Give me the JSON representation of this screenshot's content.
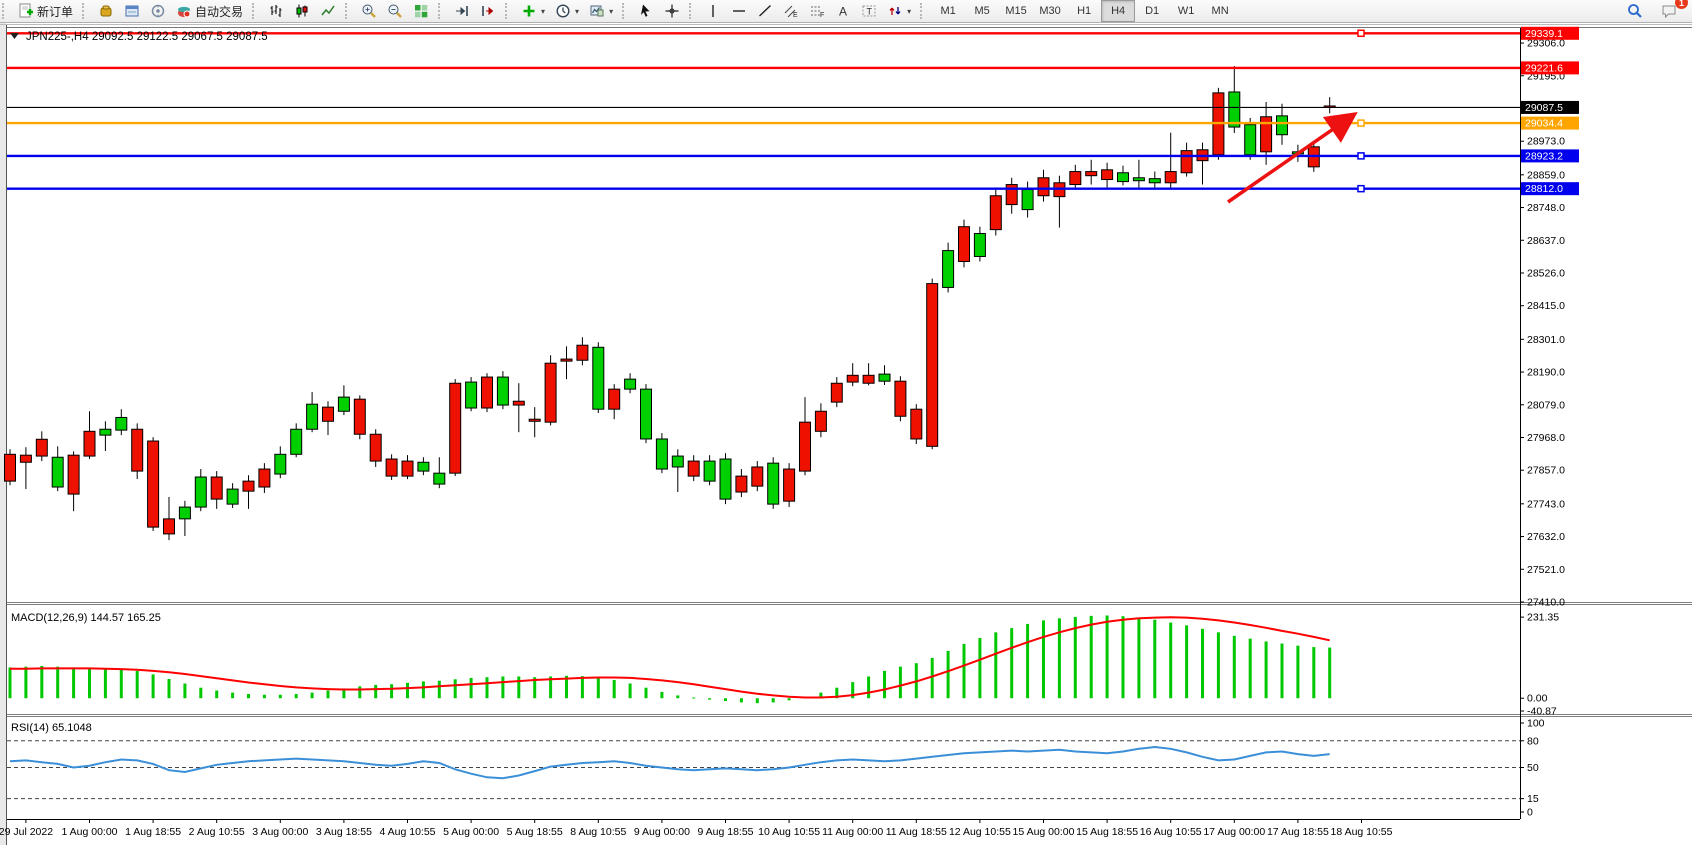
{
  "toolbar": {
    "groups": [
      {
        "items": [
          {
            "name": "new-order",
            "icon": "new-order",
            "label": "新订单"
          }
        ]
      },
      {
        "items": [
          {
            "name": "market-watch",
            "icon": "market-watch"
          },
          {
            "name": "data-window",
            "icon": "data-window"
          },
          {
            "name": "navigator",
            "icon": "navigator"
          },
          {
            "name": "auto-trading",
            "icon": "auto-trading",
            "label": "自动交易"
          }
        ]
      },
      {
        "items": [
          {
            "name": "bar-chart-mode",
            "icon": "bars"
          },
          {
            "name": "candlestick-mode",
            "icon": "candles"
          },
          {
            "name": "line-chart-mode",
            "icon": "line-chart"
          }
        ]
      },
      {
        "items": [
          {
            "name": "zoom-in",
            "icon": "zoom-in"
          },
          {
            "name": "zoom-out",
            "icon": "zoom-out"
          },
          {
            "name": "tile-windows",
            "icon": "tile"
          }
        ]
      },
      {
        "items": [
          {
            "name": "auto-scroll",
            "icon": "auto-scroll"
          },
          {
            "name": "chart-shift",
            "icon": "chart-shift"
          }
        ]
      },
      {
        "items": [
          {
            "name": "indicators",
            "icon": "indicators",
            "caret": true
          },
          {
            "name": "periods",
            "icon": "clock",
            "caret": true
          },
          {
            "name": "templates",
            "icon": "template",
            "caret": true
          }
        ]
      },
      {
        "items": [
          {
            "name": "cursor",
            "icon": "cursor"
          },
          {
            "name": "crosshair",
            "icon": "crosshair"
          }
        ]
      },
      {
        "items": [
          {
            "name": "vertical-line",
            "icon": "vline"
          },
          {
            "name": "horizontal-line",
            "icon": "hline"
          },
          {
            "name": "trendline",
            "icon": "trendline"
          },
          {
            "name": "equidistant-channel",
            "icon": "channel"
          },
          {
            "name": "fibonacci",
            "icon": "fibo"
          },
          {
            "name": "text",
            "icon": "text"
          },
          {
            "name": "text-label",
            "icon": "label"
          },
          {
            "name": "shapes",
            "icon": "shapes",
            "caret": true
          }
        ]
      }
    ],
    "timeframes": {
      "options": [
        "M1",
        "M5",
        "M15",
        "M30",
        "H1",
        "H4",
        "D1",
        "W1",
        "MN"
      ],
      "active": "H4"
    },
    "right_items": [
      {
        "name": "search",
        "icon": "search"
      },
      {
        "name": "chat",
        "icon": "chat",
        "badge": "1"
      }
    ]
  },
  "chart_data": [
    {
      "type": "candlestick",
      "symbol": "JPN225-,H4",
      "title_text": "JPN225-,H4   29092.5 29122.5 29067.5 29087.5",
      "ohlc": {
        "open": 29092.5,
        "high": 29122.5,
        "low": 29067.5,
        "close": 29087.5
      },
      "up_color": "#00d000",
      "down_color": "#ee1100",
      "y_axis": {
        "range": [
          27410,
          29357
        ],
        "ticks": [
          29306,
          29195,
          28973,
          28859,
          28748,
          28637,
          28526,
          28415,
          28301,
          28190,
          28079,
          27968,
          27857,
          27743,
          27632,
          27521,
          27410
        ]
      },
      "x_axis": {
        "labels": [
          "29 Jul 2022",
          "1 Aug 00:00",
          "1 Aug 18:55",
          "2 Aug 10:55",
          "3 Aug 00:00",
          "3 Aug 18:55",
          "4 Aug 10:55",
          "5 Aug 00:00",
          "5 Aug 18:55",
          "8 Aug 10:55",
          "9 Aug 00:00",
          "9 Aug 18:55",
          "10 Aug 10:55",
          "11 Aug 00:00",
          "11 Aug 18:55",
          "12 Aug 10:55",
          "15 Aug 00:00",
          "15 Aug 18:55",
          "16 Aug 10:55",
          "17 Aug 00:00",
          "17 Aug 18:55",
          "18 Aug 10:55"
        ],
        "label_every_n_candles": 4
      },
      "levels": [
        {
          "price": 29339.1,
          "color": "#ff0000",
          "handle": true,
          "current": false
        },
        {
          "price": 29221.6,
          "color": "#ff0000",
          "handle": false,
          "current": false
        },
        {
          "price": 29087.5,
          "color": "#000000",
          "handle": false,
          "current": true
        },
        {
          "price": 29034.4,
          "color": "#ffa500",
          "handle": true,
          "current": false
        },
        {
          "price": 28923.2,
          "color": "#0000ee",
          "handle": true,
          "current": false
        },
        {
          "price": 28812.0,
          "color": "#0000ee",
          "handle": true,
          "current": false
        }
      ],
      "annotations": [
        {
          "type": "arrow",
          "color": "#ee1111",
          "from_xy": [
            1228,
            202
          ],
          "to_xy": [
            1352,
            116
          ]
        }
      ],
      "candles": [
        [
          0,
          27911,
          27820,
          27928,
          27806
        ],
        [
          0,
          27908,
          27884,
          27935,
          27793
        ],
        [
          0,
          27962,
          27905,
          27989,
          27888
        ],
        [
          1,
          27901,
          27800,
          27938,
          27786
        ],
        [
          0,
          27908,
          27776,
          27921,
          27718
        ],
        [
          0,
          27989,
          27905,
          28057,
          27895
        ],
        [
          1,
          27996,
          27976,
          28023,
          27922
        ],
        [
          1,
          28036,
          27993,
          28064,
          27976
        ],
        [
          0,
          27996,
          27854,
          28016,
          27827
        ],
        [
          0,
          27956,
          27664,
          27969,
          27651
        ],
        [
          0,
          27692,
          27641,
          27766,
          27620
        ],
        [
          1,
          27732,
          27692,
          27753,
          27634
        ],
        [
          1,
          27834,
          27732,
          27861,
          27718
        ],
        [
          0,
          27834,
          27759,
          27854,
          27726
        ],
        [
          1,
          27793,
          27742,
          27813,
          27729
        ],
        [
          0,
          27820,
          27786,
          27840,
          27726
        ],
        [
          0,
          27861,
          27800,
          27881,
          27780
        ],
        [
          1,
          27911,
          27844,
          27938,
          27830
        ],
        [
          1,
          27996,
          27911,
          28016,
          27901
        ],
        [
          1,
          28081,
          27996,
          28122,
          27986
        ],
        [
          0,
          28071,
          28023,
          28091,
          27976
        ],
        [
          1,
          28105,
          28057,
          28145,
          28044
        ],
        [
          0,
          28098,
          27979,
          28111,
          27962
        ],
        [
          0,
          27979,
          27888,
          27996,
          27868
        ],
        [
          0,
          27895,
          27837,
          27911,
          27824
        ],
        [
          0,
          27888,
          27837,
          27908,
          27827
        ],
        [
          1,
          27884,
          27854,
          27901,
          27840
        ],
        [
          1,
          27847,
          27810,
          27901,
          27796
        ],
        [
          0,
          28152,
          27847,
          28166,
          27837
        ],
        [
          1,
          28156,
          28068,
          28173,
          28057
        ],
        [
          0,
          28173,
          28068,
          28186,
          28054
        ],
        [
          1,
          28173,
          28078,
          28193,
          28064
        ],
        [
          0,
          28091,
          28078,
          28152,
          27986
        ],
        [
          0,
          28030,
          28023,
          28071,
          27969
        ],
        [
          0,
          28220,
          28020,
          28247,
          28009
        ],
        [
          0,
          28234,
          28227,
          28277,
          28166
        ],
        [
          0,
          28281,
          28230,
          28308,
          28213
        ],
        [
          1,
          28274,
          28064,
          28291,
          28051
        ],
        [
          0,
          28132,
          28064,
          28149,
          28030
        ],
        [
          1,
          28166,
          28132,
          28186,
          28118
        ],
        [
          1,
          28132,
          27963,
          28149,
          27949
        ],
        [
          1,
          27963,
          27861,
          27983,
          27847
        ],
        [
          1,
          27905,
          27868,
          27928,
          27783
        ],
        [
          0,
          27888,
          27837,
          27908,
          27820
        ],
        [
          1,
          27888,
          27820,
          27908,
          27806
        ],
        [
          1,
          27895,
          27759,
          27915,
          27742
        ],
        [
          0,
          27837,
          27783,
          27861,
          27766
        ],
        [
          0,
          27868,
          27803,
          27888,
          27786
        ],
        [
          1,
          27881,
          27742,
          27901,
          27726
        ],
        [
          0,
          27861,
          27752,
          27881,
          27732
        ],
        [
          0,
          28020,
          27854,
          28105,
          27840
        ],
        [
          0,
          28057,
          27989,
          28084,
          27969
        ],
        [
          0,
          28152,
          28088,
          28173,
          28071
        ],
        [
          0,
          28179,
          28156,
          28220,
          28142
        ],
        [
          0,
          28179,
          28152,
          28220,
          28145
        ],
        [
          1,
          28183,
          28159,
          28213,
          28146
        ],
        [
          0,
          28159,
          28040,
          28176,
          28023
        ],
        [
          0,
          28064,
          27963,
          28081,
          27946
        ],
        [
          0,
          28490,
          27938,
          28507,
          27928
        ],
        [
          1,
          28602,
          28477,
          28629,
          28460
        ],
        [
          0,
          28683,
          28565,
          28707,
          28545
        ],
        [
          1,
          28660,
          28582,
          28683,
          28565
        ],
        [
          0,
          28788,
          28673,
          28809,
          28653
        ],
        [
          0,
          28826,
          28758,
          28849,
          28727
        ],
        [
          1,
          28809,
          28741,
          28836,
          28714
        ],
        [
          0,
          28849,
          28788,
          28876,
          28768
        ],
        [
          0,
          28832,
          28785,
          28856,
          28680
        ],
        [
          0,
          28870,
          28826,
          28893,
          28809
        ],
        [
          0,
          28870,
          28856,
          28910,
          28826
        ],
        [
          0,
          28876,
          28843,
          28900,
          28809
        ],
        [
          1,
          28866,
          28836,
          28890,
          28823
        ],
        [
          1,
          28849,
          28839,
          28910,
          28815
        ],
        [
          1,
          28846,
          28832,
          28870,
          28809
        ],
        [
          0,
          28870,
          28832,
          29002,
          28815
        ],
        [
          0,
          28941,
          28866,
          28968,
          28853
        ],
        [
          0,
          28944,
          28907,
          28968,
          28826
        ],
        [
          0,
          29137,
          28927,
          29154,
          28910
        ],
        [
          1,
          29140,
          29021,
          29228,
          29001
        ],
        [
          1,
          29029,
          28927,
          29052,
          28910
        ],
        [
          0,
          29056,
          28937,
          29106,
          28893
        ],
        [
          1,
          29059,
          28995,
          29100,
          28961
        ],
        [
          1,
          28937,
          28930,
          28961,
          28903
        ],
        [
          0,
          28954,
          28886,
          28974,
          28869
        ],
        [
          0,
          29092.5,
          29087.5,
          29122.5,
          29067.5
        ]
      ]
    },
    {
      "type": "bar",
      "name": "MACD",
      "label": "MACD(12,26,9) 144.57 165.25",
      "value": 144.57,
      "signal_value": 165.25,
      "hist_color": "#00c800",
      "signal_color": "#ff0000",
      "y_ticks": [
        231.35,
        0,
        -40.87
      ],
      "range": [
        -45,
        266
      ],
      "histogram": [
        88,
        90,
        92,
        90,
        88,
        86,
        85,
        84,
        78,
        68,
        55,
        42,
        30,
        22,
        16,
        12,
        10,
        10,
        12,
        16,
        22,
        28,
        34,
        38,
        40,
        44,
        48,
        50,
        54,
        58,
        60,
        62,
        62,
        60,
        62,
        64,
        63,
        60,
        52,
        42,
        30,
        18,
        8,
        2,
        -4,
        -8,
        -12,
        -14,
        -12,
        -6,
        4,
        16,
        30,
        46,
        62,
        78,
        90,
        100,
        115,
        135,
        155,
        172,
        188,
        200,
        212,
        222,
        228,
        232,
        235,
        236,
        234,
        230,
        224,
        216,
        208,
        198,
        188,
        178,
        170,
        162,
        156,
        150,
        146,
        144.57
      ],
      "signal": [
        84,
        84,
        85,
        85,
        85,
        85,
        84,
        83,
        81,
        78,
        74,
        69,
        63,
        57,
        51,
        45,
        40,
        35,
        31,
        28,
        26,
        25,
        25,
        26,
        27,
        29,
        31,
        34,
        37,
        40,
        43,
        46,
        49,
        52,
        54,
        56,
        58,
        59,
        59,
        58,
        55,
        51,
        46,
        40,
        33,
        26,
        19,
        13,
        8,
        4,
        2,
        2,
        4,
        9,
        16,
        25,
        36,
        48,
        62,
        77,
        93,
        110,
        127,
        144,
        160,
        175,
        188,
        200,
        210,
        218,
        224,
        228,
        230,
        231,
        230,
        227,
        222,
        216,
        209,
        201,
        192,
        184,
        175,
        165.25
      ]
    },
    {
      "type": "line",
      "name": "RSI",
      "label": "RSI(14) 65.1048",
      "value": 65.1048,
      "line_color": "#3a8fd8",
      "y_ticks": [
        100,
        80,
        50,
        15,
        0
      ],
      "dashed_levels": [
        80,
        50,
        15
      ],
      "range": [
        0,
        100
      ],
      "values": [
        57,
        58,
        56,
        54,
        50,
        52,
        56,
        59,
        58,
        54,
        47,
        45,
        49,
        53,
        55,
        57,
        58,
        59,
        60,
        59,
        58,
        57,
        55,
        53,
        52,
        54,
        57,
        55,
        48,
        43,
        39,
        38,
        41,
        46,
        51,
        53,
        55,
        56,
        57,
        55,
        52,
        50,
        48,
        47,
        48,
        49,
        48,
        47,
        48,
        50,
        53,
        56,
        58,
        59,
        58,
        57,
        58,
        60,
        62,
        64,
        66,
        67,
        68,
        69,
        68,
        69,
        70,
        68,
        67,
        66,
        68,
        71,
        73,
        71,
        67,
        62,
        58,
        59,
        63,
        67,
        68,
        65,
        63,
        65.1
      ]
    }
  ]
}
